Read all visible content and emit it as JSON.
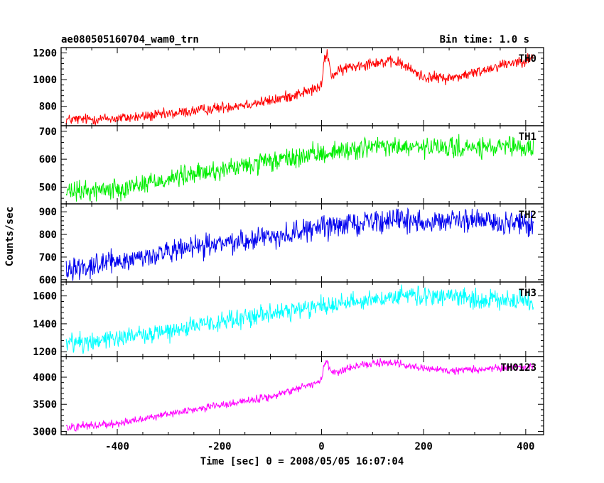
{
  "header": {
    "title": "ae080505160704_wam0_trn",
    "bin_time": "Bin time: 1.0 s"
  },
  "axes": {
    "xlabel": "Time [sec] 0 = 2008/05/05 16:07:04",
    "ylabel": "Counts/sec",
    "xlim": [
      -510,
      435
    ],
    "xticks": [
      "-400",
      "-200",
      "0",
      "200",
      "400"
    ]
  },
  "chart_data": [
    {
      "type": "line",
      "name": "TH0",
      "color": "#ff0000",
      "ylim": [
        655,
        1240
      ],
      "yticks": [
        "800",
        "1000",
        "1200"
      ],
      "x_range": [
        -500,
        415
      ],
      "trend_x": [
        -500,
        -400,
        -300,
        -200,
        -100,
        -20,
        0,
        5,
        10,
        20,
        50,
        100,
        150,
        200,
        250,
        300,
        350,
        415
      ],
      "trend_y": [
        700,
        710,
        740,
        790,
        840,
        920,
        950,
        1130,
        1210,
        1030,
        1090,
        1130,
        1130,
        1020,
        1010,
        1050,
        1110,
        1160
      ],
      "noise": 30
    },
    {
      "type": "line",
      "name": "TH1",
      "color": "#00ee00",
      "ylim": [
        440,
        720
      ],
      "yticks": [
        "500",
        "600",
        "700"
      ],
      "x_range": [
        -500,
        415
      ],
      "trend_x": [
        -500,
        -400,
        -300,
        -200,
        -100,
        0,
        100,
        200,
        300,
        415
      ],
      "trend_y": [
        480,
        495,
        530,
        560,
        590,
        620,
        645,
        640,
        640,
        640
      ],
      "noise": 26
    },
    {
      "type": "line",
      "name": "TH2",
      "color": "#0000ee",
      "ylim": [
        590,
        935
      ],
      "yticks": [
        "600",
        "700",
        "800",
        "900"
      ],
      "x_range": [
        -500,
        415
      ],
      "trend_x": [
        -500,
        -400,
        -300,
        -200,
        -100,
        0,
        100,
        200,
        300,
        415
      ],
      "trend_y": [
        650,
        680,
        720,
        760,
        790,
        830,
        860,
        860,
        860,
        845
      ],
      "noise": 35
    },
    {
      "type": "line",
      "name": "TH3",
      "color": "#00ffff",
      "ylim": [
        1165,
        1700
      ],
      "yticks": [
        "1200",
        "1400",
        "1600"
      ],
      "x_range": [
        -500,
        415
      ],
      "trend_x": [
        -500,
        -400,
        -300,
        -200,
        -100,
        0,
        100,
        200,
        300,
        415
      ],
      "trend_y": [
        1260,
        1300,
        1350,
        1410,
        1470,
        1530,
        1580,
        1600,
        1580,
        1560
      ],
      "noise": 50
    },
    {
      "type": "line",
      "name": "TH0123",
      "color": "#ff00ff",
      "ylim": [
        2940,
        4380
      ],
      "yticks": [
        "3000",
        "3500",
        "4000"
      ],
      "x_range": [
        -500,
        415
      ],
      "trend_x": [
        -500,
        -400,
        -300,
        -200,
        -100,
        -20,
        0,
        5,
        10,
        20,
        50,
        100,
        150,
        200,
        250,
        300,
        350,
        415
      ],
      "trend_y": [
        3080,
        3150,
        3320,
        3480,
        3640,
        3870,
        3950,
        4200,
        4300,
        4050,
        4160,
        4250,
        4260,
        4150,
        4120,
        4130,
        4180,
        4200
      ],
      "noise": 50
    }
  ]
}
